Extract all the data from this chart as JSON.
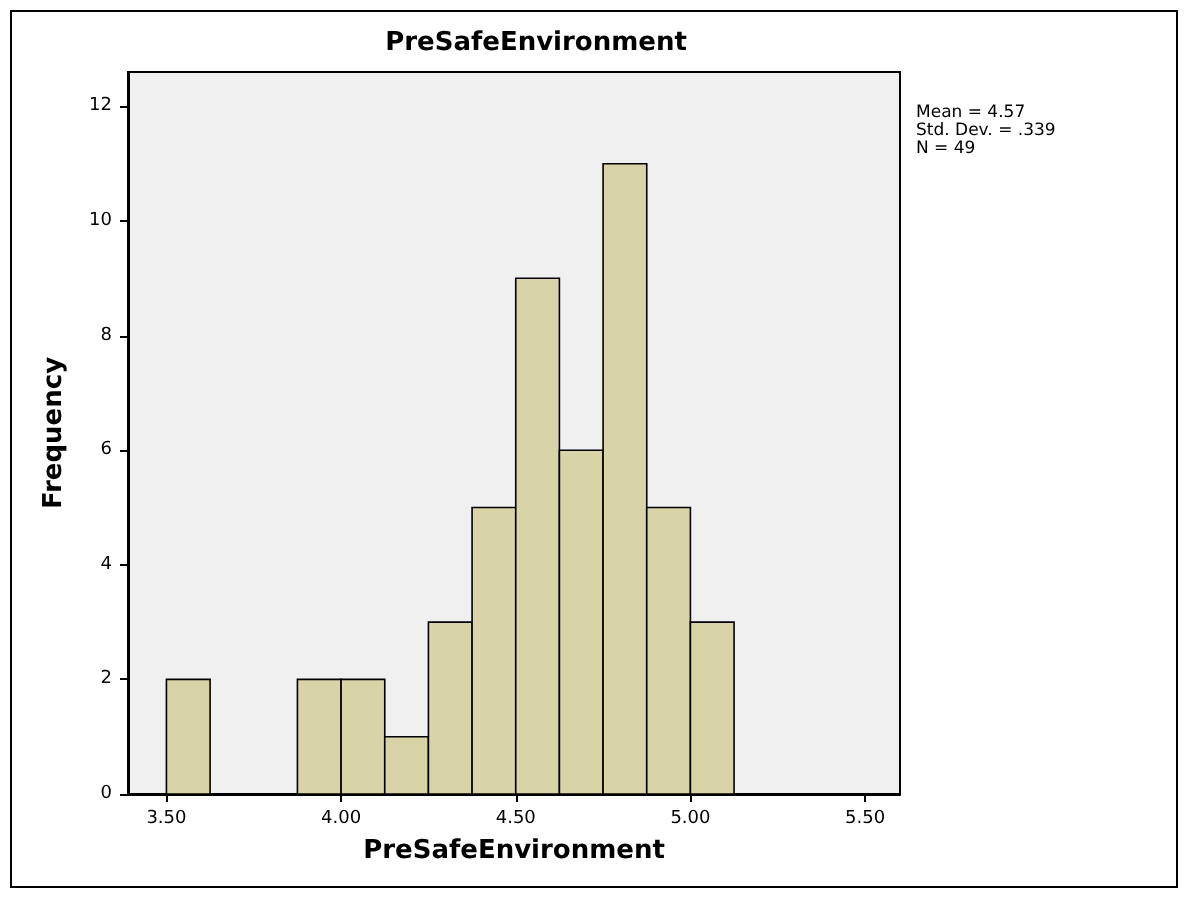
{
  "chart_data": {
    "type": "histogram",
    "title": "PreSafeEnvironment",
    "xlabel": "PreSafeEnvironment",
    "ylabel": "Frequency",
    "bins": [
      3.5,
      3.625,
      3.75,
      3.875,
      4.0,
      4.125,
      4.25,
      4.375,
      4.5,
      4.625,
      4.75,
      4.875,
      5.0,
      5.125
    ],
    "values": [
      2,
      0,
      0,
      2,
      2,
      1,
      3,
      5,
      9,
      6,
      11,
      5,
      3
    ],
    "color": "#d8d4a8",
    "xlim": [
      3.39,
      5.6
    ],
    "xticks": [
      {
        "value": 3.5,
        "label": "3.50"
      },
      {
        "value": 4.0,
        "label": "4.00"
      },
      {
        "value": 4.5,
        "label": "4.50"
      },
      {
        "value": 5.0,
        "label": "5.00"
      },
      {
        "value": 5.5,
        "label": "5.50"
      }
    ],
    "ylim": [
      0,
      12.6
    ],
    "yticks": [
      0,
      2,
      4,
      6,
      8,
      10,
      12
    ],
    "grid": false,
    "legend": false,
    "annotations": [
      "Mean = 4.57",
      "Std. Dev. = .339",
      "N = 49"
    ]
  }
}
